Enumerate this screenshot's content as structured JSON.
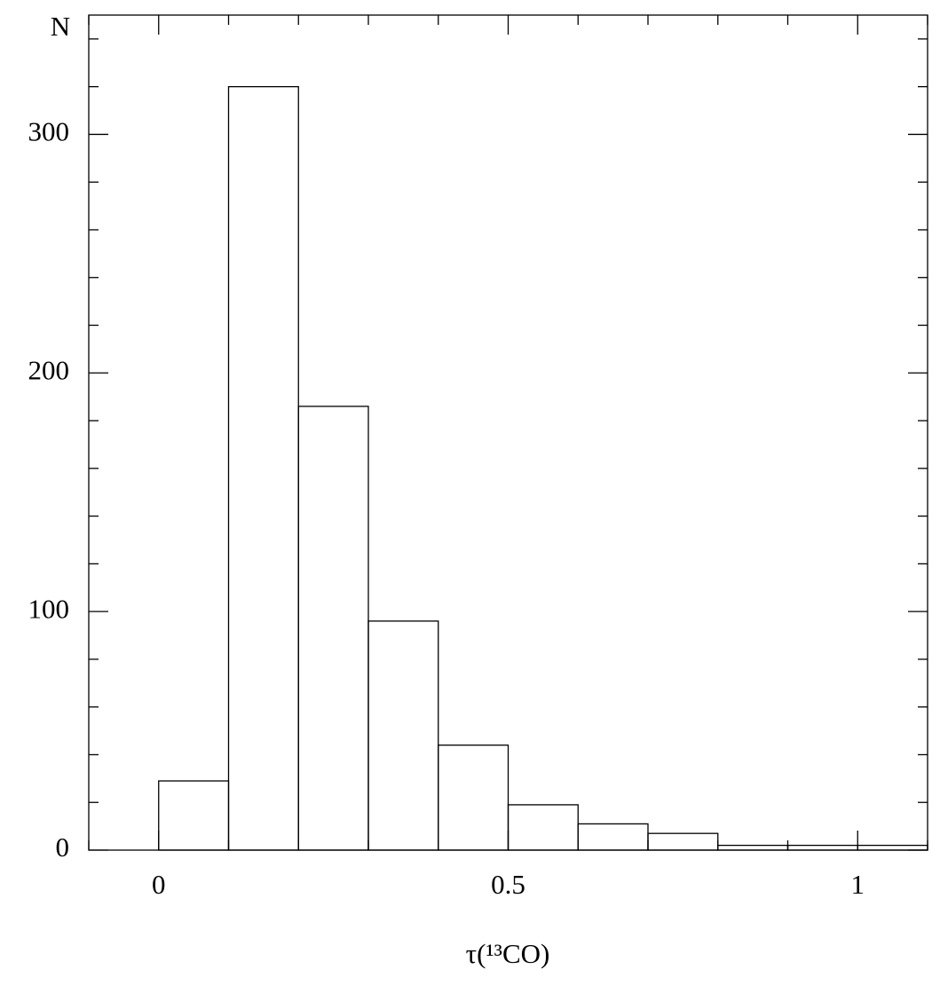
{
  "chart_data": {
    "type": "histogram",
    "xlabel": "τ(¹³CO)",
    "ylabel": "N",
    "bins": [
      0,
      0.1,
      0.2,
      0.3,
      0.4,
      0.5,
      0.6,
      0.7,
      0.8,
      0.9,
      1.0,
      1.1
    ],
    "counts": [
      29,
      320,
      186,
      96,
      44,
      19,
      11,
      7,
      2,
      2,
      2
    ],
    "color": "#000000",
    "xlim": [
      -0.1,
      1.1
    ],
    "xticks": [
      0,
      0.5,
      1
    ],
    "xticks_minor": [
      -0.1,
      0.1,
      0.2,
      0.3,
      0.4,
      0.6,
      0.7,
      0.8,
      0.9,
      1.1
    ],
    "ylim": [
      0,
      350
    ],
    "yticks": [
      0,
      100,
      200,
      300
    ],
    "yticks_minor": [
      20,
      40,
      60,
      80,
      120,
      140,
      160,
      180,
      220,
      240,
      260,
      280,
      320,
      340
    ],
    "grid": false
  }
}
